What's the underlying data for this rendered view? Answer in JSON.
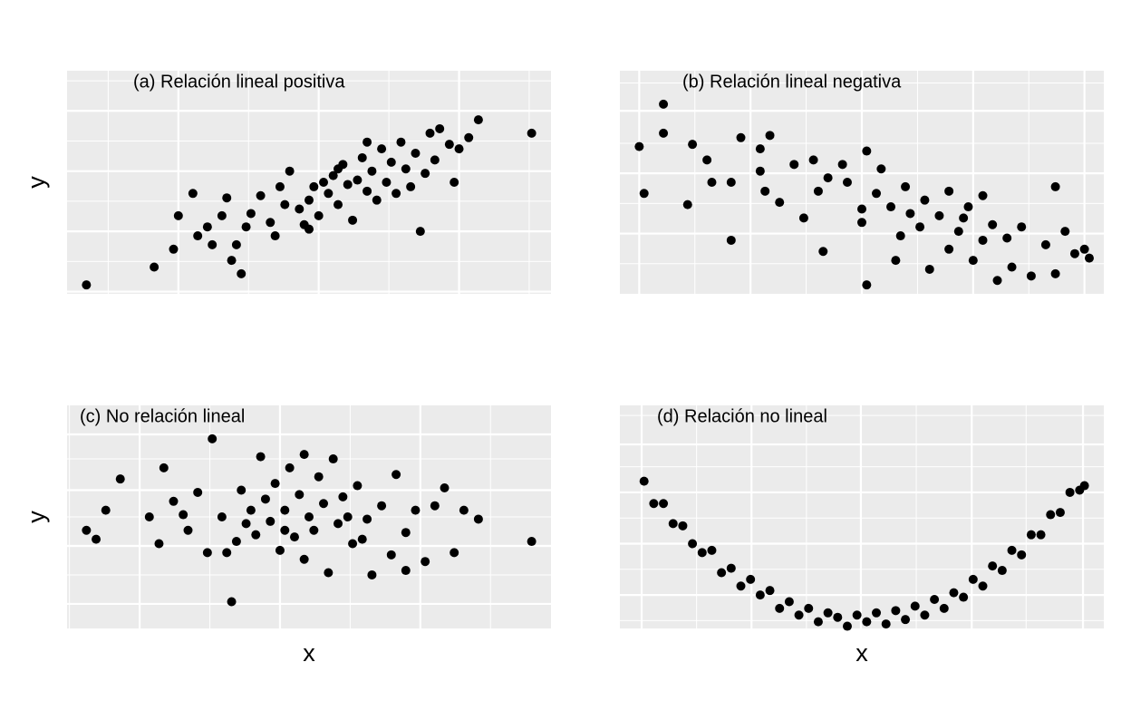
{
  "chart_data": [
    {
      "type": "scatter",
      "title": "(a) Relación lineal positiva",
      "ylabel": "y",
      "color": "#000000",
      "grid": true,
      "xlim": [
        0,
        10
      ],
      "ylim": [
        0,
        10
      ],
      "xticks": [
        2.3,
        5.2,
        8.1
      ],
      "yticks": [
        0.1,
        2.8,
        5.5,
        8.2
      ],
      "x": [
        0.4,
        1.8,
        9.6,
        8.5,
        2.2,
        2.3,
        2.7,
        2.6,
        3.2,
        3.0,
        3.4,
        3.6,
        3.7,
        3.8,
        4.0,
        4.2,
        4.3,
        4.5,
        4.6,
        4.8,
        5.0,
        5.1,
        5.2,
        5.3,
        5.4,
        5.5,
        5.6,
        5.7,
        5.8,
        5.9,
        6.0,
        6.1,
        6.2,
        6.3,
        6.4,
        6.5,
        6.6,
        6.7,
        6.8,
        6.9,
        7.0,
        7.1,
        7.2,
        7.3,
        7.4,
        7.5,
        7.6,
        7.7,
        7.9,
        8.0,
        8.1,
        8.3,
        3.5,
        4.4,
        5.0,
        2.9,
        3.3,
        6.2,
        5.6,
        4.9
      ],
      "y": [
        0.4,
        1.2,
        7.2,
        7.8,
        2.0,
        3.5,
        2.6,
        4.5,
        3.5,
        2.2,
        1.5,
        0.9,
        3.0,
        3.6,
        4.4,
        3.2,
        2.6,
        4.0,
        5.5,
        3.8,
        4.2,
        4.8,
        3.5,
        5.0,
        4.5,
        5.3,
        4.0,
        5.8,
        4.9,
        3.3,
        5.1,
        6.1,
        4.6,
        5.5,
        4.2,
        6.5,
        5.0,
        5.9,
        4.5,
        6.8,
        5.6,
        4.8,
        6.3,
        2.8,
        5.4,
        7.2,
        6.0,
        7.4,
        6.7,
        5.0,
        6.5,
        7.0,
        2.2,
        4.8,
        2.9,
        3.0,
        4.3,
        6.8,
        5.6,
        3.1
      ]
    },
    {
      "type": "scatter",
      "title": "(b) Relación lineal negativa",
      "color": "#000000",
      "grid": true,
      "xlim": [
        0,
        10
      ],
      "ylim": [
        0,
        10
      ],
      "xticks": [
        0.4,
        2.7,
        5.0,
        7.3,
        9.6
      ],
      "yticks": [
        2.7,
        5.4,
        8.2
      ],
      "x": [
        0.4,
        0.5,
        0.9,
        0.9,
        1.4,
        1.5,
        1.8,
        2.3,
        2.3,
        2.5,
        2.9,
        2.9,
        3.1,
        3.3,
        3.6,
        3.8,
        4.0,
        4.1,
        4.2,
        4.3,
        4.7,
        5.0,
        5.0,
        5.1,
        5.1,
        5.3,
        5.4,
        5.6,
        5.7,
        5.9,
        6.0,
        6.2,
        6.3,
        6.4,
        6.6,
        6.8,
        7.0,
        7.1,
        7.3,
        7.5,
        7.5,
        7.7,
        7.8,
        8.0,
        8.1,
        8.3,
        8.5,
        8.8,
        9.0,
        9.0,
        9.2,
        9.4,
        9.6,
        9.7,
        4.6,
        3.0,
        6.8,
        7.2,
        1.9,
        5.8
      ],
      "y": [
        6.6,
        4.5,
        8.5,
        7.2,
        4.0,
        6.7,
        6.0,
        2.4,
        5.0,
        7.0,
        6.5,
        5.5,
        7.1,
        4.1,
        5.8,
        3.4,
        6.0,
        4.6,
        1.9,
        5.2,
        5.0,
        3.2,
        3.8,
        6.4,
        0.4,
        4.5,
        5.6,
        3.9,
        1.5,
        4.8,
        3.6,
        3.0,
        4.2,
        1.1,
        3.5,
        4.6,
        2.8,
        3.4,
        1.5,
        4.4,
        2.4,
        3.1,
        0.6,
        2.5,
        1.2,
        3.0,
        0.8,
        2.2,
        4.8,
        0.9,
        2.8,
        1.8,
        2.0,
        1.6,
        5.8,
        4.6,
        2.0,
        3.9,
        5.0,
        2.6
      ]
    },
    {
      "type": "scatter",
      "title": "(c) No relación lineal",
      "xlabel": "x",
      "ylabel": "y",
      "color": "#000000",
      "grid": true,
      "xlim": [
        0,
        10
      ],
      "ylim": [
        0,
        10
      ],
      "xticks": [
        1.5,
        4.4,
        7.3
      ],
      "yticks": [
        1.1,
        3.7,
        6.2,
        8.7
      ],
      "x": [
        0.4,
        0.6,
        0.8,
        1.1,
        1.7,
        1.9,
        2.0,
        2.2,
        2.5,
        2.7,
        2.9,
        3.0,
        3.2,
        3.4,
        3.5,
        3.6,
        3.8,
        3.9,
        4.0,
        4.1,
        4.2,
        4.3,
        4.4,
        4.5,
        4.6,
        4.7,
        4.8,
        4.9,
        5.0,
        5.1,
        5.2,
        5.3,
        5.4,
        5.5,
        5.6,
        5.7,
        5.9,
        6.0,
        6.2,
        6.3,
        6.5,
        6.7,
        6.8,
        7.0,
        7.2,
        7.4,
        7.6,
        7.8,
        8.0,
        8.2,
        8.5,
        9.6,
        3.3,
        4.5,
        5.8,
        2.4,
        6.1,
        3.7,
        4.9,
        7.0
      ],
      "y": [
        4.4,
        4.0,
        5.3,
        6.7,
        5.0,
        3.8,
        7.2,
        5.7,
        4.4,
        6.1,
        3.4,
        8.5,
        5.0,
        1.2,
        3.9,
        6.2,
        5.3,
        4.2,
        7.7,
        5.8,
        4.8,
        6.5,
        3.5,
        5.3,
        7.2,
        4.1,
        6.0,
        3.1,
        5.0,
        4.4,
        6.8,
        5.6,
        2.5,
        7.6,
        4.7,
        5.9,
        3.8,
        6.4,
        4.9,
        2.4,
        5.5,
        3.3,
        6.9,
        4.3,
        5.3,
        3.0,
        5.5,
        6.3,
        3.4,
        5.3,
        4.9,
        3.9,
        3.4,
        4.4,
        5.0,
        5.1,
        4.0,
        4.7,
        7.8,
        2.6
      ]
    },
    {
      "type": "scatter",
      "title": "(d) Relación no lineal",
      "xlabel": "x",
      "color": "#000000",
      "grid": true,
      "xlim": [
        0,
        10
      ],
      "ylim": [
        0,
        10
      ],
      "xticks": [
        0.45,
        2.72,
        4.98,
        7.27,
        9.57
      ],
      "yticks": [
        1.5,
        3.8,
        6.1,
        8.25
      ],
      "x": [
        0.5,
        0.7,
        0.9,
        1.1,
        1.3,
        1.5,
        1.7,
        1.9,
        2.1,
        2.3,
        2.5,
        2.7,
        2.9,
        3.1,
        3.3,
        3.5,
        3.7,
        3.9,
        4.1,
        4.3,
        4.5,
        4.7,
        4.9,
        5.1,
        5.3,
        5.5,
        5.7,
        5.9,
        6.1,
        6.3,
        6.5,
        6.7,
        6.9,
        7.1,
        7.3,
        7.5,
        7.7,
        7.9,
        8.1,
        8.3,
        8.5,
        8.7,
        8.9,
        9.1,
        9.3,
        9.5,
        9.6
      ],
      "y": [
        6.6,
        5.6,
        5.6,
        4.7,
        4.6,
        3.8,
        3.4,
        3.5,
        2.5,
        2.7,
        1.9,
        2.2,
        1.5,
        1.7,
        0.9,
        1.2,
        0.6,
        0.9,
        0.3,
        0.7,
        0.5,
        0.1,
        0.6,
        0.3,
        0.7,
        0.2,
        0.8,
        0.4,
        1.0,
        0.6,
        1.3,
        0.9,
        1.6,
        1.4,
        2.2,
        1.9,
        2.8,
        2.6,
        3.5,
        3.3,
        4.2,
        4.2,
        5.1,
        5.2,
        6.1,
        6.2,
        6.4
      ]
    }
  ]
}
